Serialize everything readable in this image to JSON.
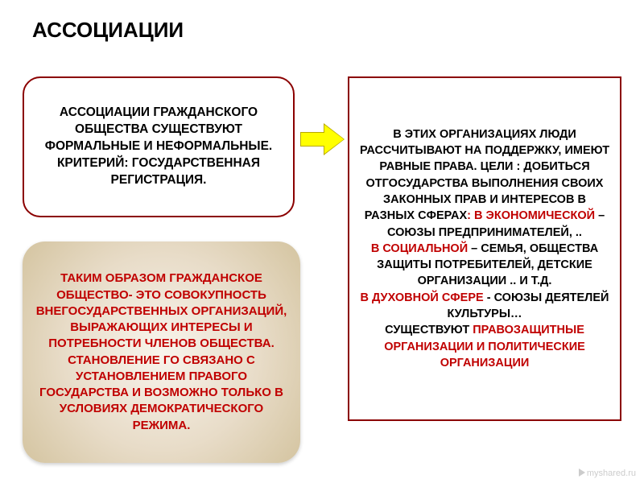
{
  "title": "АССОЦИАЦИИ",
  "box_top_left": "АССОЦИАЦИИ ГРАЖДАНСКОГО ОБЩЕСТВА СУЩЕСТВУЮТ ФОРМАЛЬНЫЕ И НЕФОРМАЛЬНЫЕ. КРИТЕРИЙ: ГОСУДАРСТВЕННАЯ РЕГИСТРАЦИЯ.",
  "box_bottom_left": "ТАКИМ ОБРАЗОМ ГРАЖДАНСКОЕ ОБЩЕСТВО- ЭТО СОВОКУПНОСТЬ ВНЕГОСУДАРСТВЕННЫХ ОРГАНИЗАЦИЙ, ВЫРАЖАЮЩИХ ИНТЕРЕСЫ И ПОТРЕБНОСТИ ЧЛЕНОВ ОБЩЕСТВА. СТАНОВЛЕНИЕ ГО  СВЯЗАНО С УСТАНОВЛЕНИЕМ  ПРАВОГО ГОСУДАРСТВА И ВОЗМОЖНО ТОЛЬКО В УСЛОВИЯХ  ДЕМОКРАТИЧЕСКОГО РЕЖИМА.",
  "right": {
    "p1_black": "В ЭТИХ ОРГАНИЗАЦИЯХ ЛЮДИ РАССЧИТЫВАЮТ НА ПОДДЕРЖКУ, ИМЕЮТ РАВНЫЕ ПРАВА. ЦЕЛИ : ДОБИТЬСЯ ОТГОСУДАРСТВА ВЫПОЛНЕНИЯ СВОИХ ЗАКОННЫХ ПРАВ  И ИНТЕРЕСОВ В РАЗНЫХ СФЕРАХ",
    "p2_red": ": В ЭКОНОМИЧЕСКОЙ",
    "p2_black": " – СОЮЗЫ ПРЕДПРИНИМАТЕЛЕЙ, ..",
    "p3_red": "В СОЦИАЛЬНОЙ",
    "p3_black": " – СЕМЬЯ, ОБЩЕСТВА ЗАЩИТЫ ПОТРЕБИТЕЛЕЙ, ДЕТСКИЕ ОРГАНИЗАЦИИ .. И Т.Д.",
    "p4_red": "В ДУХОВНОЙ СФЕРЕ",
    "p4_black_a": " - СОЮЗЫ ДЕЯТЕЛЕЙ КУЛЬТУРЫ…",
    "p5_black": "СУЩЕСТВУЮТ ",
    "p5_red": "ПРАВОЗАЩИТНЫЕ ОРГАНИЗАЦИИ И ПОЛИТИЧЕСКИЕ ОРГАНИЗАЦИИ"
  },
  "watermark": "myshared.ru",
  "colors": {
    "red": "#c00000",
    "black": "#000000",
    "border": "#8b0000",
    "arrow_fill": "#ffff00",
    "arrow_border": "#b8a800",
    "bg": "#ffffff"
  },
  "fontsizes": {
    "title": 26,
    "body": 15
  }
}
